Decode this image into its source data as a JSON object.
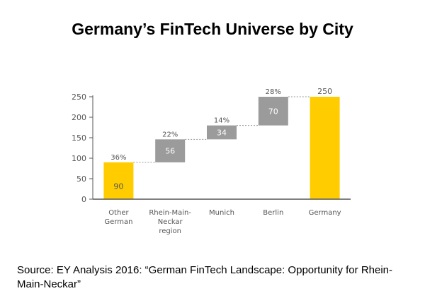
{
  "title": "Germany’s FinTech Universe by City",
  "source": "Source: EY Analysis 2016: “German FinTech Landscape: Opportunity for Rhein-Main-Neckar”",
  "colors": {
    "highlight": "#ffcc00",
    "step": "#9b9b9b",
    "axis": "#555555",
    "connector": "#999999"
  },
  "chart_data": {
    "type": "bar",
    "subtype": "waterfall",
    "categories": [
      [
        "Other",
        "German"
      ],
      [
        "Rhein-Main-",
        "Neckar",
        "region"
      ],
      [
        "Munich"
      ],
      [
        "Berlin"
      ],
      [
        "Germany"
      ]
    ],
    "values": [
      90,
      56,
      34,
      70,
      250
    ],
    "bases": [
      0,
      90,
      146,
      180,
      0
    ],
    "labels": [
      "90",
      "56",
      "34",
      "70",
      "250"
    ],
    "percent_labels": [
      "36%",
      "22%",
      "14%",
      "28%",
      ""
    ],
    "kinds": [
      "highlight",
      "step",
      "step",
      "step",
      "highlight"
    ],
    "y_ticks": [
      0,
      50,
      100,
      150,
      200,
      250
    ],
    "ylim": [
      0,
      250
    ],
    "grid": false,
    "legend": "none"
  }
}
